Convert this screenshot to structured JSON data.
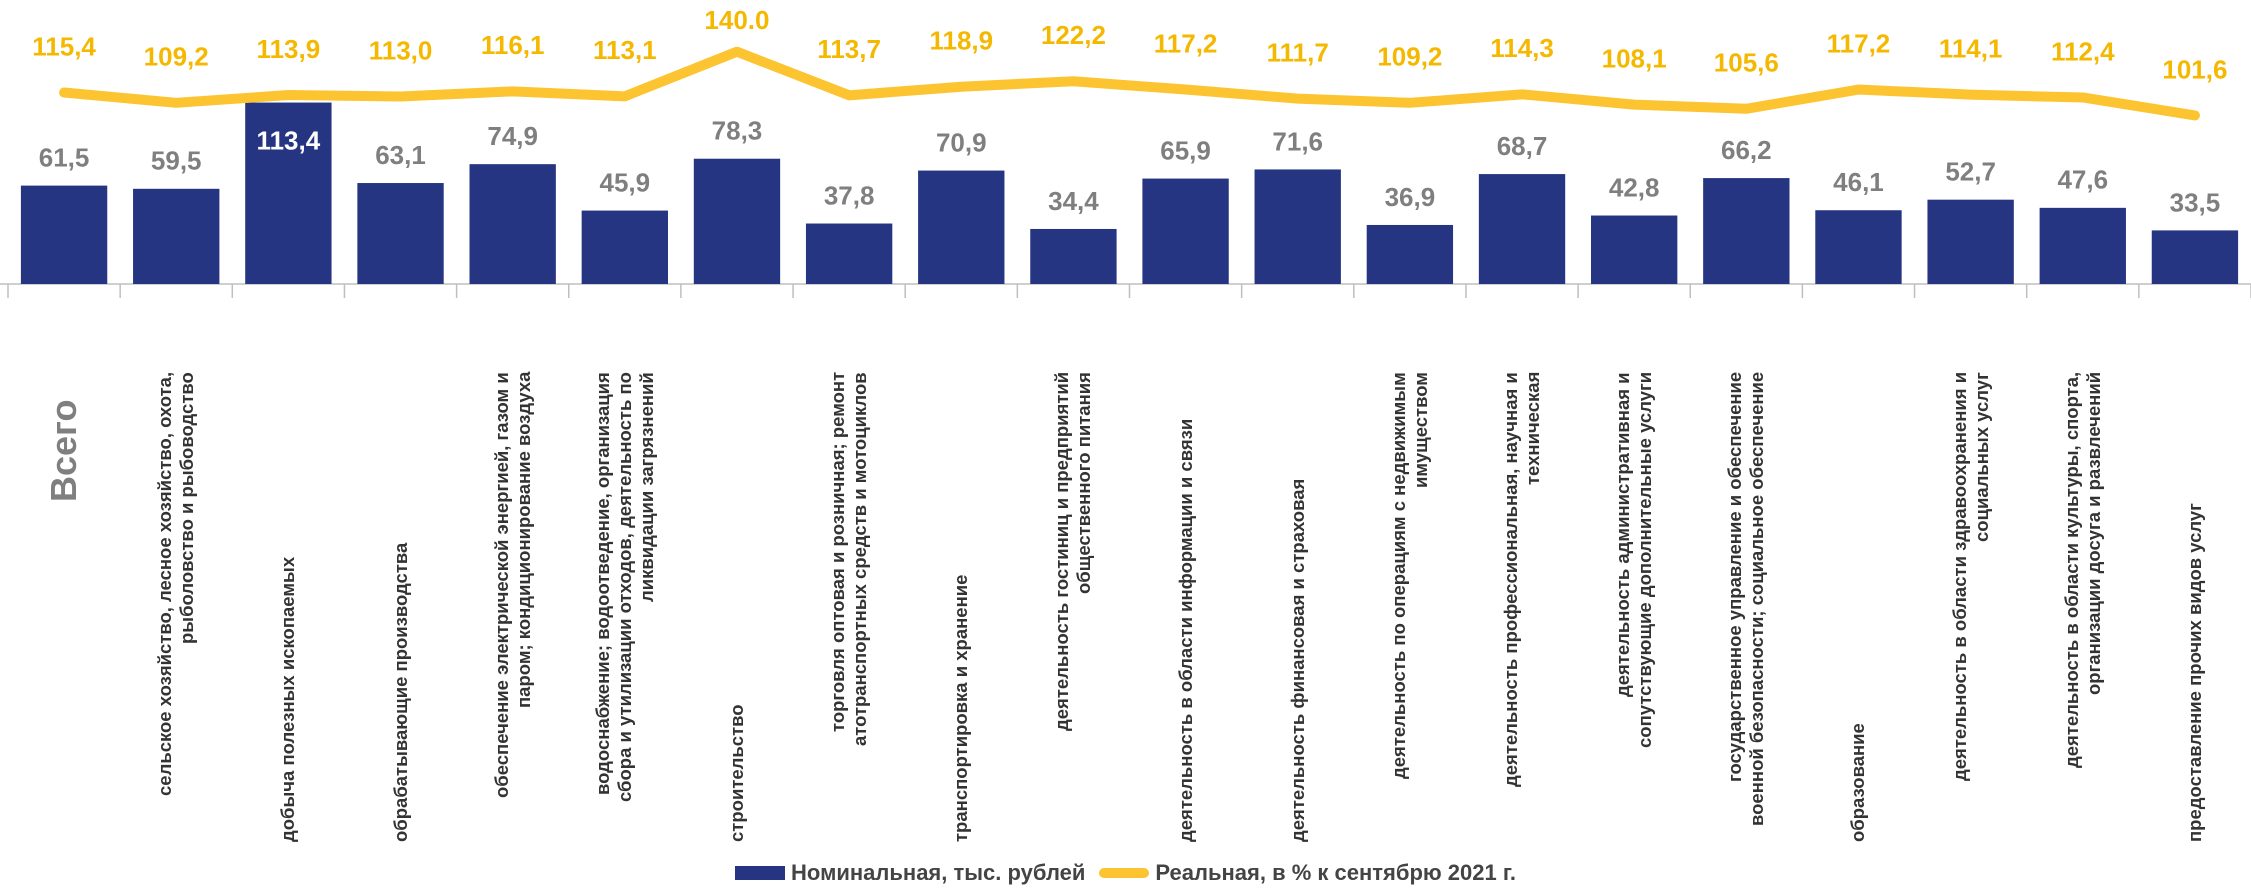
{
  "chart_data": {
    "type": "bar_line",
    "categories": [
      "Всего",
      "сельское хозяйство, лесное хозяйство, охота, рыболовство и рыбоводство",
      "добыча полезных ископаемых",
      "обрабатывающие производства",
      "обеспечение электрической энергией, газом и паром; кондиционирование воздуха",
      "водоснабжение; водоотведение, организация сбора и утилизации отходов, деятельность по ликвидации загрязнений",
      "строительство",
      "торговля оптовая и розничная; ремонт атотранспортных средств и мотоциклов",
      "транспортировка и хранение",
      "деятельность гостиниц и предприятий общественного питания",
      "деятельность в области информации и связи",
      "деятельность финансовая и страховая",
      "деятельность по операциям с недвижимым имуществом",
      "деятельность профессиональная, научная и техническая",
      "деятельность административная и сопутствующие дополнительные услуги",
      "государственное управление и обеспечение военной безопасности; социальное обеспечение",
      "образование",
      "деятельность в области здравоохранения и социальных услуг",
      "деятельность в области культуры, спорта, организации досуга и развлечений",
      "предоставление прочих видов услуг"
    ],
    "series": [
      {
        "name": "Номинальная, тыс. рублей",
        "type": "bar",
        "color": "#263582",
        "values": [
          61.5,
          59.5,
          113.4,
          63.1,
          74.9,
          45.9,
          78.3,
          37.8,
          70.9,
          34.4,
          65.9,
          71.6,
          36.9,
          68.7,
          42.8,
          66.2,
          46.1,
          52.7,
          47.6,
          33.5
        ],
        "value_labels": [
          "61,5",
          "59,5",
          "113,4",
          "63,1",
          "74,9",
          "45,9",
          "78,3",
          "37,8",
          "70,9",
          "34,4",
          "65,9",
          "71,6",
          "36,9",
          "68,7",
          "42,8",
          "66,2",
          "46,1",
          "52,7",
          "47,6",
          "33,5"
        ]
      },
      {
        "name": "Реальная, в % к сентябрю 2021 г.",
        "type": "line",
        "axis": "y2",
        "color": "#fcc430",
        "values": [
          115.4,
          109.2,
          113.9,
          113.0,
          116.1,
          113.1,
          140.0,
          113.7,
          118.9,
          122.2,
          117.2,
          111.7,
          109.2,
          114.3,
          108.1,
          105.6,
          117.2,
          114.1,
          112.4,
          101.6
        ],
        "value_labels": [
          "115,4",
          "109,2",
          "113,9",
          "113,0",
          "116,1",
          "113,1",
          "140.0",
          "113,7",
          "118,9",
          "122,2",
          "117,2",
          "111,7",
          "109,2",
          "114,3",
          "108,1",
          "105,6",
          "117,2",
          "114,1",
          "112,4",
          "101,6"
        ]
      }
    ],
    "ylim": [
      0,
      140
    ],
    "y2lim": [
      0,
      135
    ]
  }
}
